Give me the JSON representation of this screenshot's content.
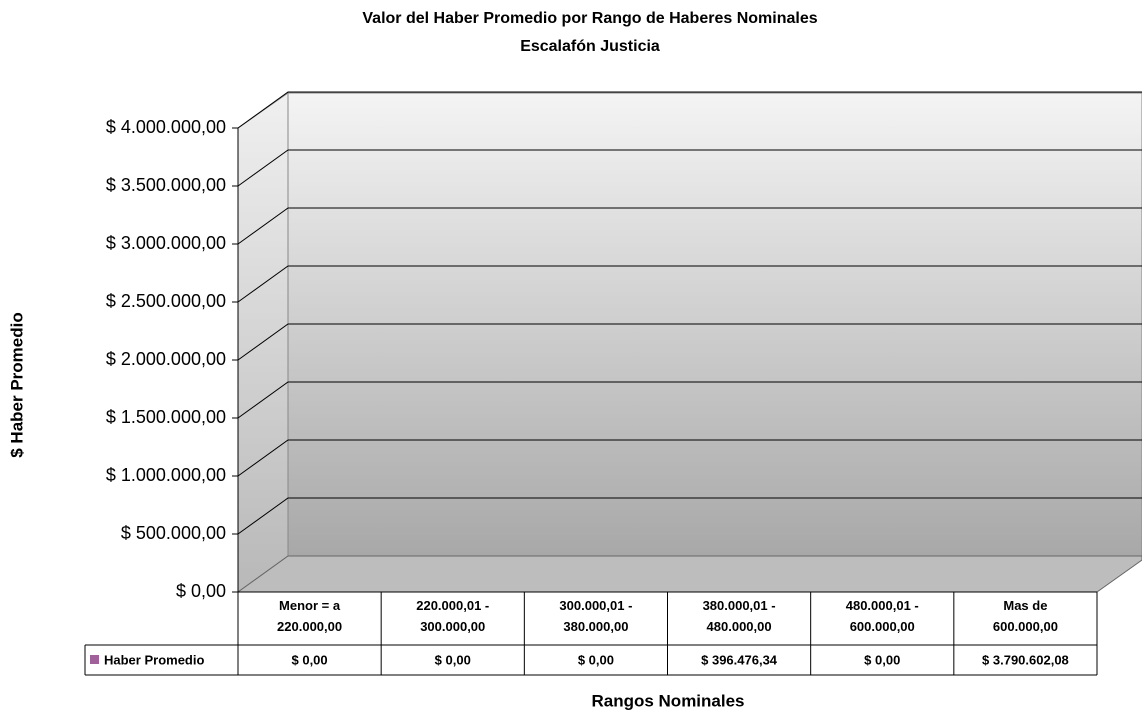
{
  "chart_data": {
    "type": "bar3d",
    "title": "Valor del Haber Promedio por Rango de Haberes Nominales",
    "subtitle": "Escalafón Justicia",
    "y_label": "$ Haber Promedio",
    "x_label": "Rangos Nominales",
    "categories": [
      "Menor = a 220.000,00",
      "220.000,01 - 300.000,00",
      "300.000,01 - 380.000,00",
      "380.000,01 - 480.000,00",
      "480.000,01 - 600.000,00",
      "Mas de 600.000,00"
    ],
    "series": [
      {
        "name": "Haber Promedio",
        "color": "#a0609a",
        "values": [
          0,
          0,
          0,
          396476.34,
          0,
          3790602.08
        ],
        "value_labels": [
          "$ 0,00",
          "$ 0,00",
          "$ 0,00",
          "$ 396.476,34",
          "$ 0,00",
          "$ 3.790.602,08"
        ]
      }
    ],
    "ylim": [
      0,
      4000000
    ],
    "yticks": [
      {
        "value": 0,
        "label": "$ 0,00"
      },
      {
        "value": 500000,
        "label": "$ 500.000,00"
      },
      {
        "value": 1000000,
        "label": "$ 1.000.000,00"
      },
      {
        "value": 1500000,
        "label": "$ 1.500.000,00"
      },
      {
        "value": 2000000,
        "label": "$ 2.000.000,00"
      },
      {
        "value": 2500000,
        "label": "$ 2.500.000,00"
      },
      {
        "value": 3000000,
        "label": "$ 3.000.000,00"
      },
      {
        "value": 3500000,
        "label": "$ 3.500.000,00"
      },
      {
        "value": 4000000,
        "label": "$ 4.000.000,00"
      }
    ],
    "grid": true,
    "data_table": true
  }
}
